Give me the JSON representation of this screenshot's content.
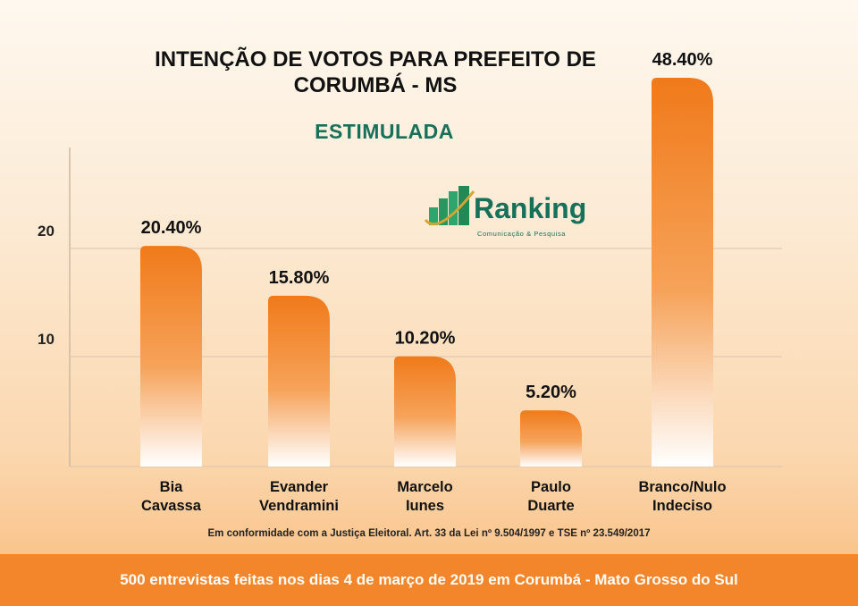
{
  "chart_data": {
    "type": "bar",
    "title": "INTENÇÃO DE VOTOS PARA PREFEITO DE CORUMBÁ - MS",
    "subtitle": "ESTIMULADA",
    "categories": [
      "Bia Cavassa",
      "Evander Vendramini",
      "Marcelo Iunes",
      "Paulo Duarte",
      "Branco/Nulo Indeciso"
    ],
    "category_lines": [
      [
        "Bia",
        "Cavassa"
      ],
      [
        "Evander",
        "Vendramini"
      ],
      [
        "Marcelo",
        "Iunes"
      ],
      [
        "Paulo",
        "Duarte"
      ],
      [
        "Branco/Nulo",
        "Indeciso"
      ]
    ],
    "values": [
      20.4,
      15.8,
      10.2,
      5.2,
      48.4
    ],
    "data_labels": [
      "20.40%",
      "15.80%",
      "10.20%",
      "5.20%",
      "48.40%"
    ],
    "yticks": [
      10,
      20
    ],
    "ytick_labels": [
      "10",
      "20"
    ],
    "grid": true,
    "bar_color": "#f07a1a"
  },
  "logo": {
    "name": "Ranking",
    "tagline": "Comunicação & Pesquisa",
    "color": "#17705a"
  },
  "note": "Em conformidade com a Justiça Eleitoral. Art. 33 da Lei nº 9.504/1997 e TSE nº 23.549/2017",
  "footer": "500 entrevistas feitas nos dias 4 de março de 2019 em Corumbá - Mato Grosso do Sul",
  "colors": {
    "footer": "#f3862a",
    "subtitle": "#17705a"
  }
}
